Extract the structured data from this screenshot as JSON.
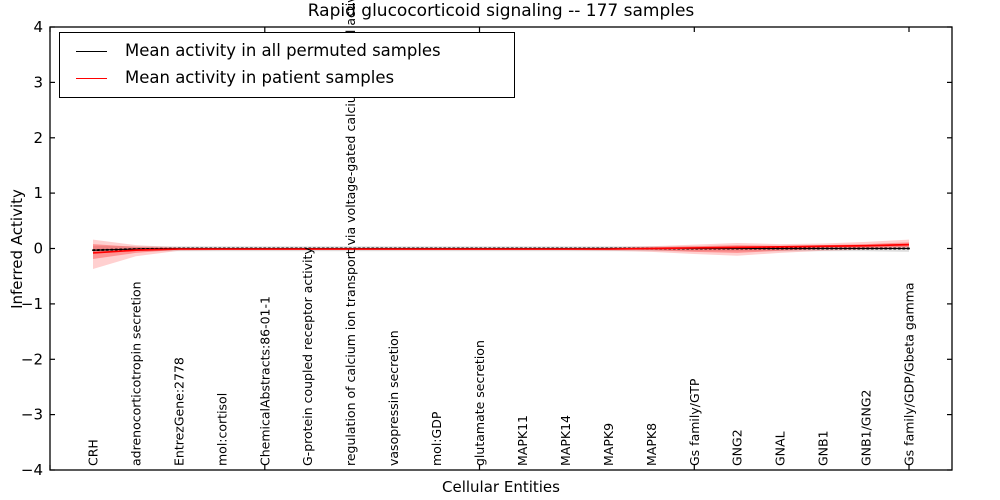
{
  "chart_data": {
    "type": "line",
    "title": "Rapid glucocorticoid signaling -- 177 samples",
    "xlabel": "Cellular Entities",
    "ylabel": "Inferred Activity",
    "xlim": [
      0,
      21
    ],
    "ylim": [
      -4,
      4
    ],
    "y_ticks": [
      4,
      3,
      2,
      1,
      0,
      -1,
      -2,
      -3,
      -4
    ],
    "y_tick_labels": [
      "4",
      "3",
      "2",
      "1",
      "0",
      "−1",
      "−2",
      "−3",
      "−4"
    ],
    "x_tick_positions": [
      0,
      5,
      10,
      15,
      20
    ],
    "grid": false,
    "legend_position": "upper left",
    "categories": [
      "CRH",
      "adrenocorticotropin secretion",
      "EntrezGene:2778",
      "mol:cortisol",
      "ChemicalAbstracts:86-01-1",
      "G-protein coupled receptor activity",
      "regulation of calcium ion transport via voltage-gated calcium channel activity",
      "vasopressin secretion",
      "mol:GDP",
      "glutamate secretion",
      "MAPK11",
      "MAPK14",
      "MAPK9",
      "MAPK8",
      "Gs family/GTP",
      "GNG2",
      "GNAL",
      "GNB1",
      "GNB1/GNG2",
      "Gs family/GDP/Gbeta gamma"
    ],
    "series": [
      {
        "name": "Mean activity in all permuted samples",
        "color": "#000000",
        "line_style": "dotted",
        "values": [
          -0.03,
          -0.01,
          0,
          0,
          0,
          0,
          0,
          0,
          0,
          0,
          0,
          0,
          0,
          0,
          0,
          0,
          0,
          0,
          0,
          0
        ]
      },
      {
        "name": "Mean activity in patient samples",
        "color": "#ff0000",
        "line_style": "solid",
        "values": [
          -0.08,
          -0.03,
          -0.01,
          -0.01,
          -0.01,
          -0.01,
          -0.01,
          -0.01,
          -0.01,
          -0.01,
          -0.01,
          -0.01,
          -0.01,
          0.0,
          0.01,
          0.02,
          0.03,
          0.04,
          0.05,
          0.07
        ]
      }
    ],
    "bands": [
      {
        "name": "permuted-samples-std-band",
        "color": "#999999",
        "opacity": 0.3,
        "upper": [
          0.05,
          0.04,
          0.04,
          0.04,
          0.04,
          0.04,
          0.04,
          0.04,
          0.04,
          0.04,
          0.04,
          0.04,
          0.04,
          0.04,
          0.04,
          0.04,
          0.04,
          0.04,
          0.04,
          0.05
        ],
        "lower": [
          -0.06,
          -0.05,
          -0.05,
          -0.05,
          -0.05,
          -0.05,
          -0.05,
          -0.05,
          -0.05,
          -0.05,
          -0.05,
          -0.05,
          -0.05,
          -0.05,
          -0.05,
          -0.05,
          -0.05,
          -0.05,
          -0.05,
          -0.06
        ]
      },
      {
        "name": "patient-samples-std-outer-band",
        "color": "#ff4444",
        "opacity": 0.25,
        "upper": [
          0.16,
          0.06,
          0.02,
          0.01,
          0.01,
          0.01,
          0.01,
          0.01,
          0.01,
          0.01,
          0.01,
          0.01,
          0.02,
          0.04,
          0.07,
          0.1,
          0.08,
          0.09,
          0.12,
          0.16
        ],
        "lower": [
          -0.37,
          -0.14,
          -0.04,
          -0.03,
          -0.03,
          -0.03,
          -0.03,
          -0.03,
          -0.03,
          -0.03,
          -0.03,
          -0.03,
          -0.04,
          -0.06,
          -0.1,
          -0.13,
          -0.08,
          -0.04,
          -0.02,
          -0.01
        ]
      },
      {
        "name": "patient-samples-std-inner-band",
        "color": "#ff2222",
        "opacity": 0.35,
        "upper": [
          0.08,
          0.03,
          0.01,
          0.01,
          0.01,
          0.01,
          0.01,
          0.01,
          0.01,
          0.01,
          0.01,
          0.01,
          0.01,
          0.02,
          0.04,
          0.06,
          0.05,
          0.06,
          0.08,
          0.11
        ],
        "lower": [
          -0.19,
          -0.08,
          -0.02,
          -0.02,
          -0.02,
          -0.02,
          -0.02,
          -0.02,
          -0.02,
          -0.02,
          -0.02,
          -0.02,
          -0.02,
          -0.03,
          -0.06,
          -0.08,
          -0.04,
          -0.01,
          0.01,
          0.03
        ]
      }
    ]
  }
}
